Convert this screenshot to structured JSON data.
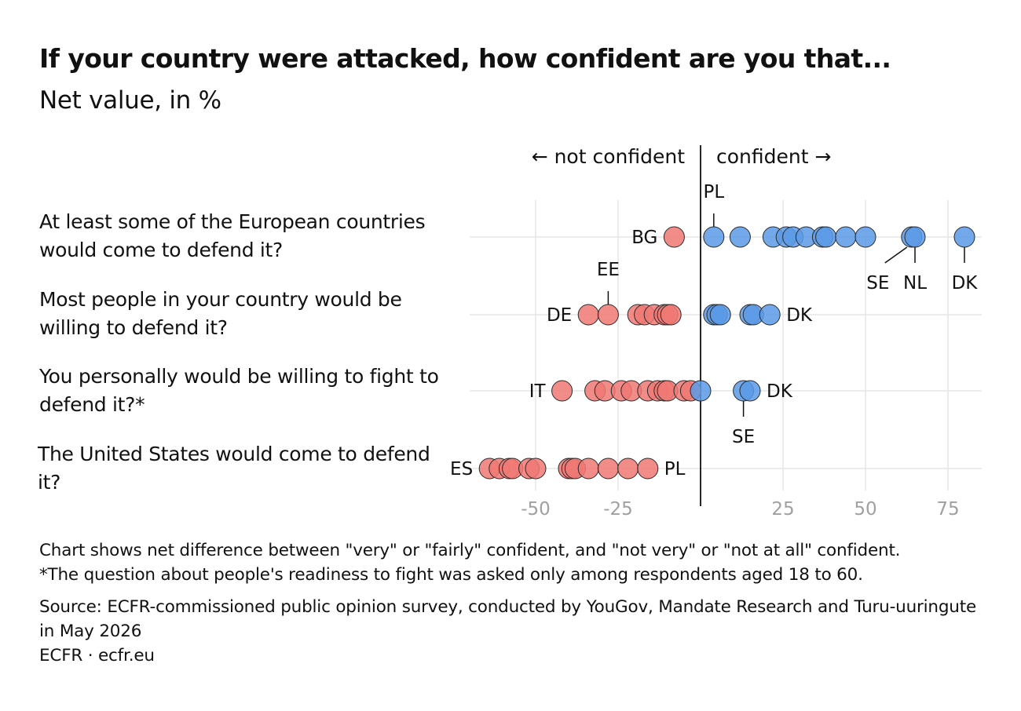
{
  "header": {
    "title": "If your country were attacked, how confident are you that...",
    "subtitle": "Net value, in %"
  },
  "direction_labels": {
    "left": "← not confident",
    "right": "confident →"
  },
  "colors": {
    "negative": "#f07874",
    "positive": "#5a9ae6",
    "grid": "#e6e6e6",
    "axis_tick": "#a0a0a0",
    "zero_line": "#111111"
  },
  "footer": {
    "note1": "Chart shows net difference between \"very\" or \"fairly\" confident, and \"not very\" or \"not at all\" confident.",
    "note2": "*The question about people's readiness to fight was asked only among respondents aged 18 to 60.",
    "source": "Source: ECFR-commissioned public opinion survey, conducted by YouGov, Mandate Research and Turu-uuringute in May 2026",
    "credit": "ECFR · ecfr.eu"
  },
  "chart_data": {
    "type": "scatter",
    "title": "If your country were attacked, how confident are you that...",
    "subtitle": "Net value, in %",
    "xlim": [
      -70,
      85
    ],
    "xticks": [
      -50,
      -25,
      25,
      50,
      75
    ],
    "grid": true,
    "rows": [
      {
        "question": "At least some of the European countries would come to defend it?",
        "values": [
          -8,
          4,
          12,
          22,
          26,
          28,
          32,
          37,
          38,
          44,
          50,
          64,
          65,
          80
        ],
        "labels": [
          {
            "text": "BG",
            "value": -8
          },
          {
            "text": "PL",
            "value": 4
          },
          {
            "text": "SE",
            "value": 64
          },
          {
            "text": "NL",
            "value": 65
          },
          {
            "text": "DK",
            "value": 80
          }
        ]
      },
      {
        "question": "Most people in your country would be willing to defend it?",
        "values": [
          -34,
          -28,
          -19,
          -17,
          -14,
          -11,
          -10,
          -9,
          4,
          5,
          6,
          15,
          16,
          21
        ],
        "labels": [
          {
            "text": "DE",
            "value": -34
          },
          {
            "text": "EE",
            "value": -28
          },
          {
            "text": "DK",
            "value": 21
          }
        ]
      },
      {
        "question": "You personally would be willing to fight to defend it?*",
        "values": [
          -42,
          -32,
          -29,
          -24,
          -21,
          -16,
          -13,
          -11,
          -10,
          -5,
          -3,
          0,
          13,
          15
        ],
        "labels": [
          {
            "text": "IT",
            "value": -42
          },
          {
            "text": "SE",
            "value": 13
          },
          {
            "text": "DK",
            "value": 15
          }
        ]
      },
      {
        "question": "The United States would come to defend it?",
        "values": [
          -64,
          -61,
          -58,
          -57,
          -52,
          -50,
          -40,
          -39,
          -38,
          -34,
          -28,
          -22,
          -16
        ],
        "labels": [
          {
            "text": "ES",
            "value": -64
          },
          {
            "text": "PL",
            "value": -16
          }
        ]
      }
    ]
  }
}
